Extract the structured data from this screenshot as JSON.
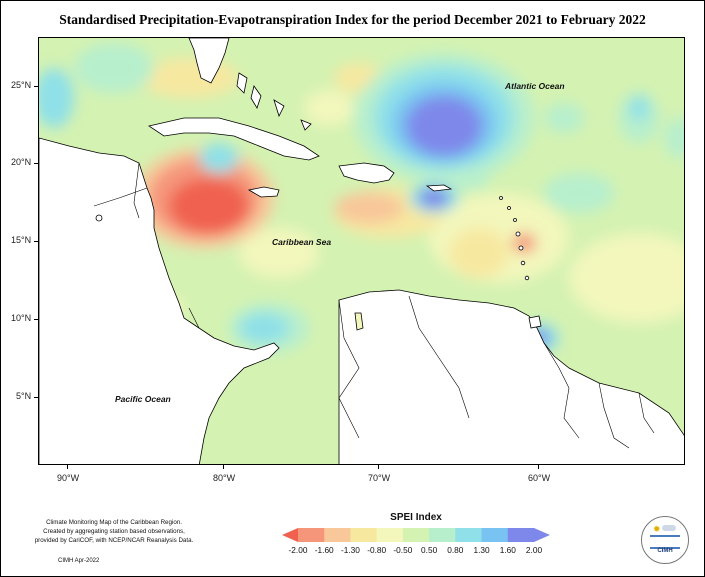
{
  "title": "Standardised Precipitation-Evapotranspiration Index for the period December 2021 to February 2022",
  "lat_labels": [
    "25°N",
    "20°N",
    "15°N",
    "10°N",
    "5°N"
  ],
  "lon_labels": [
    "90°W",
    "80°W",
    "70°W",
    "60°W"
  ],
  "ocean_labels": {
    "atlantic": "Atlantic Ocean",
    "caribbean": "Caribbean Sea",
    "pacific": "Pacific Ocean"
  },
  "credits": {
    "line1": "Climate Monitoring Map of the Caribbean Region.",
    "line2": "Created by aggregating station based observations,",
    "line3": "provided by CariCOF, with NCEP/NCAR Reanalysis Data.",
    "date": "CIMH Apr-2022"
  },
  "legend": {
    "title": "SPEI Index",
    "ticks": [
      "-2.00",
      "-1.60",
      "-1.30",
      "-0.80",
      "-0.50",
      "0.50",
      "0.80",
      "1.30",
      "1.60",
      "2.00"
    ],
    "colors": [
      "#f0624f",
      "#f5957a",
      "#f8c79a",
      "#f7e8a0",
      "#f3f7bc",
      "#d4f2b2",
      "#b7efcd",
      "#8fe0e8",
      "#79c3f2",
      "#7e88ea"
    ]
  },
  "logo": {
    "name": "CIMH"
  }
}
